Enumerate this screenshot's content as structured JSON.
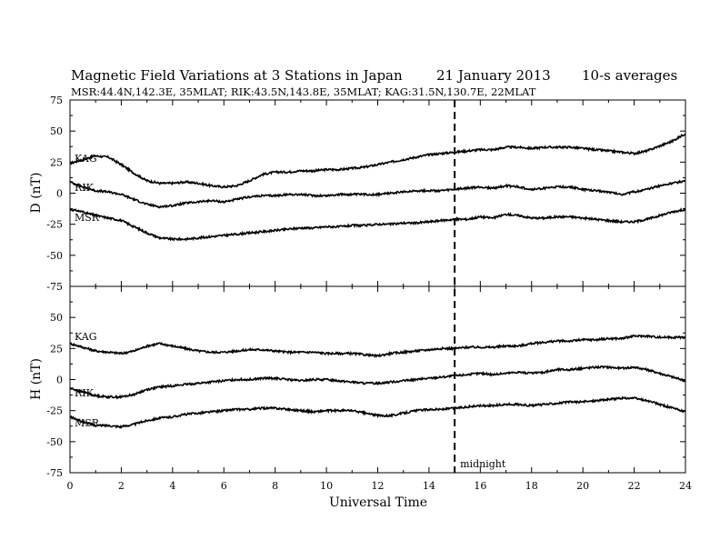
{
  "header": {
    "title": "Magnetic Field Variations at 3 Stations in Japan",
    "date": "21 January 2013",
    "averaging": "10-s averages",
    "stations": "MSR:44.4N,142.3E, 35MLAT;  RIK:43.5N,143.8E, 35MLAT;  KAG:31.5N,130.7E, 22MLAT"
  },
  "chart_data": [
    {
      "type": "line",
      "ylabel": "D (nT)",
      "xlabel": "",
      "xlim": [
        0,
        24
      ],
      "ylim": [
        -75,
        75
      ],
      "yticks": [
        "75",
        "50",
        "25",
        "0",
        "-25",
        "-50",
        "-75"
      ],
      "series": [
        {
          "name": "KAG",
          "x": [
            0,
            0.5,
            1,
            1.5,
            2,
            2.5,
            3,
            3.5,
            4,
            4.5,
            5,
            5.5,
            6,
            6.5,
            7,
            7.5,
            8,
            8.5,
            9,
            9.5,
            10,
            10.5,
            11,
            11.5,
            12,
            12.5,
            13,
            13.5,
            14,
            14.5,
            15,
            15.5,
            16,
            16.5,
            17,
            17.5,
            18,
            18.5,
            19,
            19.5,
            20,
            20.5,
            21,
            21.5,
            22,
            22.5,
            23,
            23.5,
            24
          ],
          "y": [
            24,
            27,
            30,
            29,
            23,
            16,
            10,
            8,
            8,
            9,
            8,
            6,
            5,
            6,
            10,
            15,
            17,
            17,
            18,
            18,
            19,
            19,
            20,
            21,
            23,
            25,
            27,
            29,
            31,
            32,
            33,
            34,
            35,
            35,
            37,
            37,
            36,
            37,
            37,
            37,
            36,
            35,
            34,
            33,
            32,
            34,
            38,
            42,
            48
          ]
        },
        {
          "name": "RIK",
          "x": [
            0,
            0.5,
            1,
            1.5,
            2,
            2.5,
            3,
            3.5,
            4,
            4.5,
            5,
            5.5,
            6,
            6.5,
            7,
            7.5,
            8,
            8.5,
            9,
            9.5,
            10,
            10.5,
            11,
            11.5,
            12,
            12.5,
            13,
            13.5,
            14,
            14.5,
            15,
            15.5,
            16,
            16.5,
            17,
            17.5,
            18,
            18.5,
            19,
            19.5,
            20,
            20.5,
            21,
            21.5,
            22,
            22.5,
            23,
            23.5,
            24
          ],
          "y": [
            9,
            5,
            2,
            1,
            -1,
            -5,
            -9,
            -11,
            -10,
            -8,
            -7,
            -6,
            -7,
            -5,
            -3,
            -2,
            -2,
            -1,
            -1,
            -2,
            -2,
            -1,
            -1,
            -1,
            -1,
            0,
            1,
            2,
            2,
            2,
            3,
            4,
            5,
            4,
            6,
            5,
            3,
            4,
            5,
            5,
            3,
            2,
            1,
            -1,
            1,
            3,
            6,
            8,
            10
          ]
        },
        {
          "name": "MSR",
          "x": [
            0,
            0.5,
            1,
            1.5,
            2,
            2.5,
            3,
            3.5,
            4,
            4.5,
            5,
            5.5,
            6,
            6.5,
            7,
            7.5,
            8,
            8.5,
            9,
            9.5,
            10,
            10.5,
            11,
            11.5,
            12,
            12.5,
            13,
            13.5,
            14,
            14.5,
            15,
            15.5,
            16,
            16.5,
            17,
            17.5,
            18,
            18.5,
            19,
            19.5,
            20,
            20.5,
            21,
            21.5,
            22,
            22.5,
            23,
            23.5,
            24
          ],
          "y": [
            -13,
            -15,
            -18,
            -20,
            -22,
            -27,
            -32,
            -36,
            -37,
            -37,
            -36,
            -35,
            -34,
            -33,
            -32,
            -31,
            -30,
            -29,
            -28,
            -28,
            -27,
            -27,
            -26,
            -26,
            -25,
            -25,
            -24,
            -24,
            -23,
            -22,
            -21,
            -21,
            -19,
            -20,
            -17,
            -18,
            -20,
            -20,
            -19,
            -19,
            -20,
            -21,
            -22,
            -23,
            -23,
            -21,
            -18,
            -15,
            -13
          ]
        }
      ]
    },
    {
      "type": "line",
      "ylabel": "H (nT)",
      "xlabel": "Universal Time",
      "xlim": [
        0,
        24
      ],
      "ylim": [
        -75,
        75
      ],
      "yticks": [
        "75",
        "50",
        "25",
        "0",
        "-25",
        "-50",
        "-75"
      ],
      "xticks": [
        "0",
        "2",
        "4",
        "6",
        "8",
        "10",
        "12",
        "14",
        "16",
        "18",
        "20",
        "22",
        "24"
      ],
      "series": [
        {
          "name": "KAG",
          "x": [
            0,
            0.5,
            1,
            1.5,
            2,
            2.5,
            3,
            3.5,
            4,
            4.5,
            5,
            5.5,
            6,
            6.5,
            7,
            7.5,
            8,
            8.5,
            9,
            9.5,
            10,
            10.5,
            11,
            11.5,
            12,
            12.5,
            13,
            13.5,
            14,
            14.5,
            15,
            15.5,
            16,
            16.5,
            17,
            17.5,
            18,
            18.5,
            19,
            19.5,
            20,
            20.5,
            21,
            21.5,
            22,
            22.5,
            23,
            23.5,
            24
          ],
          "y": [
            29,
            26,
            23,
            22,
            21,
            23,
            27,
            29,
            27,
            25,
            23,
            22,
            22,
            23,
            24,
            24,
            23,
            22,
            22,
            22,
            21,
            21,
            21,
            20,
            19,
            21,
            22,
            23,
            24,
            25,
            25,
            26,
            26,
            26,
            27,
            27,
            29,
            30,
            31,
            31,
            32,
            32,
            33,
            33,
            35,
            35,
            34,
            34,
            34
          ]
        },
        {
          "name": "RIK",
          "x": [
            0,
            0.5,
            1,
            1.5,
            2,
            2.5,
            3,
            3.5,
            4,
            4.5,
            5,
            5.5,
            6,
            6.5,
            7,
            7.5,
            8,
            8.5,
            9,
            9.5,
            10,
            10.5,
            11,
            11.5,
            12,
            12.5,
            13,
            13.5,
            14,
            14.5,
            15,
            15.5,
            16,
            16.5,
            17,
            17.5,
            18,
            18.5,
            19,
            19.5,
            20,
            20.5,
            21,
            21.5,
            22,
            22.5,
            23,
            23.5,
            24
          ],
          "y": [
            -7,
            -10,
            -13,
            -14,
            -14,
            -12,
            -8,
            -6,
            -5,
            -4,
            -3,
            -2,
            -1,
            0,
            0,
            1,
            1,
            0,
            -1,
            0,
            0,
            -1,
            -2,
            -3,
            -3,
            -2,
            -1,
            0,
            1,
            2,
            3,
            4,
            5,
            4,
            5,
            6,
            5,
            6,
            8,
            8,
            9,
            10,
            10,
            9,
            10,
            8,
            5,
            2,
            -1
          ]
        },
        {
          "name": "MSR",
          "x": [
            0,
            0.5,
            1,
            1.5,
            2,
            2.5,
            3,
            3.5,
            4,
            4.5,
            5,
            5.5,
            6,
            6.5,
            7,
            7.5,
            8,
            8.5,
            9,
            9.5,
            10,
            10.5,
            11,
            11.5,
            12,
            12.5,
            13,
            13.5,
            14,
            14.5,
            15,
            15.5,
            16,
            16.5,
            17,
            17.5,
            18,
            18.5,
            19,
            19.5,
            20,
            20.5,
            21,
            21.5,
            22,
            22.5,
            23,
            23.5,
            24
          ],
          "y": [
            -30,
            -34,
            -37,
            -37,
            -38,
            -36,
            -33,
            -31,
            -30,
            -28,
            -27,
            -26,
            -25,
            -24,
            -24,
            -23,
            -23,
            -24,
            -25,
            -26,
            -25,
            -25,
            -25,
            -27,
            -29,
            -29,
            -27,
            -25,
            -24,
            -24,
            -23,
            -22,
            -21,
            -21,
            -20,
            -20,
            -21,
            -20,
            -19,
            -18,
            -18,
            -17,
            -16,
            -15,
            -15,
            -17,
            -20,
            -23,
            -26
          ]
        }
      ]
    }
  ],
  "midnight": {
    "x": 15,
    "label": "midnight"
  }
}
